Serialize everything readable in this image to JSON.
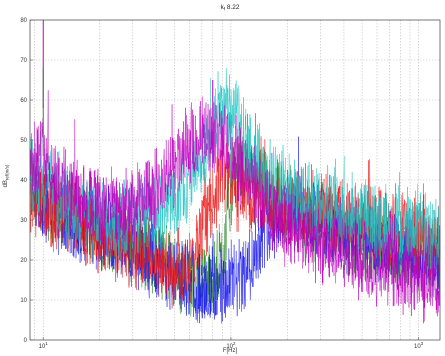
{
  "chart_data": {
    "type": "line",
    "title": "k_f 8.22",
    "title_main": "k",
    "title_sub": "f",
    "title_rest": " 8.22",
    "xlabel": "F[Hz]",
    "ylabel": "dB",
    "ylabel_sub": "ref(m/s)",
    "x_scale": "log",
    "xlim": [
      8.5,
      1300
    ],
    "ylim": [
      0,
      80
    ],
    "yticks": [
      0,
      10,
      20,
      30,
      40,
      50,
      60,
      70,
      80
    ],
    "xticks": [
      {
        "value": 10,
        "base": "10",
        "exp": "1"
      },
      {
        "value": 100,
        "base": "10",
        "exp": "2"
      },
      {
        "value": 1000,
        "base": "10",
        "exp": "3"
      }
    ],
    "grid": true,
    "series": [
      {
        "color": "#2e8b2e",
        "x": [
          8.5,
          10,
          12,
          15,
          20,
          30,
          40,
          50,
          60,
          70,
          80,
          90,
          100,
          110,
          120,
          130,
          150,
          200,
          300,
          500,
          700,
          1000,
          1300
        ],
        "y": [
          40,
          35,
          33,
          31,
          28,
          24,
          20,
          17,
          15,
          14,
          15,
          20,
          38,
          44,
          42,
          40,
          38,
          32,
          28,
          24,
          22,
          20,
          19
        ]
      },
      {
        "color": "#1a1aee",
        "x": [
          8.5,
          10,
          12,
          15,
          20,
          30,
          40,
          50,
          60,
          70,
          80,
          90,
          100,
          110,
          120,
          130,
          150,
          200,
          300,
          500,
          700,
          1000,
          1300
        ],
        "y": [
          38,
          34,
          32,
          30,
          27,
          23,
          19,
          16,
          15,
          14,
          13,
          12,
          13,
          15,
          17,
          20,
          28,
          33,
          30,
          26,
          23,
          21,
          20
        ]
      },
      {
        "color": "#ee1a1a",
        "x": [
          8.5,
          10,
          12,
          15,
          20,
          30,
          40,
          50,
          60,
          70,
          80,
          90,
          100,
          110,
          120,
          130,
          150,
          200,
          300,
          500,
          700,
          1000,
          1300
        ],
        "y": [
          36,
          34,
          32,
          30,
          27,
          23,
          20,
          18,
          19,
          25,
          35,
          42,
          40,
          37,
          36,
          35,
          36,
          34,
          33,
          30,
          28,
          26,
          24
        ]
      },
      {
        "color": "#20c4c4",
        "x": [
          8.5,
          10,
          12,
          15,
          20,
          30,
          40,
          50,
          60,
          70,
          80,
          90,
          100,
          110,
          120,
          130,
          150,
          200,
          300,
          500,
          700,
          1000,
          1300
        ],
        "y": [
          42,
          40,
          37,
          34,
          31,
          30,
          32,
          35,
          40,
          46,
          52,
          57,
          58,
          55,
          50,
          46,
          42,
          37,
          34,
          31,
          29,
          27,
          26
        ]
      },
      {
        "color": "#c000c0",
        "x": [
          8.5,
          10,
          12,
          15,
          20,
          30,
          40,
          50,
          60,
          70,
          80,
          90,
          100,
          110,
          120,
          130,
          150,
          200,
          300,
          500,
          700,
          1000,
          1300
        ],
        "y": [
          44,
          48,
          40,
          36,
          33,
          33,
          38,
          43,
          48,
          51,
          52,
          50,
          47,
          44,
          42,
          39,
          35,
          28,
          24,
          20,
          17,
          15,
          14
        ]
      }
    ],
    "peaks": [
      {
        "x": 10,
        "y": 80,
        "color": "#c000c0"
      },
      {
        "x": 10,
        "y": 68,
        "color": "#2e8b2e"
      },
      {
        "x": 80,
        "y": 65,
        "color": "#c000c0"
      },
      {
        "x": 100,
        "y": 61,
        "color": "#20c4c4"
      }
    ]
  }
}
